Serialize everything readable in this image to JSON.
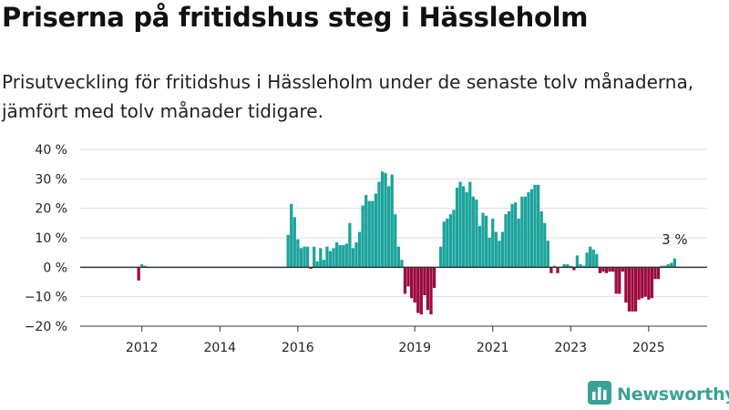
{
  "title": "Priserna på fritidshus steg i Hässleholm",
  "subtitle": "Prisutveckling för fritidshus i Hässleholm under de senaste tolv månaderna, jämfört med tolv månader tidigare.",
  "logo": {
    "text": "Newsworthy",
    "icon": "bar-chart-logo-icon"
  },
  "colors": {
    "positive": "#1ba39c",
    "negative": "#9b0b3e",
    "axis": "#333333",
    "grid": "#dddddd"
  },
  "chart_data": {
    "type": "bar",
    "title": "",
    "xlabel": "",
    "ylabel": "",
    "ylim": [
      -20,
      40
    ],
    "y_ticks": [
      {
        "value": 40,
        "label": "40 %"
      },
      {
        "value": 30,
        "label": "30 %"
      },
      {
        "value": 20,
        "label": "20 %"
      },
      {
        "value": 10,
        "label": "10 %"
      },
      {
        "value": 0,
        "label": "0 %"
      },
      {
        "value": -10,
        "label": "−10 %"
      },
      {
        "value": -20,
        "label": "−20 %"
      }
    ],
    "x_ticks": [
      {
        "date": "2012-01",
        "label": "2012"
      },
      {
        "date": "2014-01",
        "label": "2014"
      },
      {
        "date": "2016-01",
        "label": "2016"
      },
      {
        "date": "2019-01",
        "label": "2019"
      },
      {
        "date": "2021-01",
        "label": "2021"
      },
      {
        "date": "2023-01",
        "label": "2023"
      },
      {
        "date": "2025-01",
        "label": "2025"
      }
    ],
    "x_range": [
      "2010-06",
      "2026-07"
    ],
    "grid": true,
    "annotation": {
      "date": "2025-09",
      "label": "3 %"
    },
    "series": [
      {
        "values": [
          [
            "2011-12",
            -4.5
          ],
          [
            "2012-01",
            1
          ],
          [
            "2012-02",
            0.5
          ],
          [
            "2015-10",
            11
          ],
          [
            "2015-11",
            21.5
          ],
          [
            "2015-12",
            17
          ],
          [
            "2016-01",
            9.5
          ],
          [
            "2016-02",
            6.5
          ],
          [
            "2016-03",
            7
          ],
          [
            "2016-04",
            7
          ],
          [
            "2016-05",
            -0.5
          ],
          [
            "2016-06",
            7
          ],
          [
            "2016-07",
            2
          ],
          [
            "2016-08",
            6.5
          ],
          [
            "2016-09",
            2.5
          ],
          [
            "2016-10",
            7
          ],
          [
            "2016-11",
            5.5
          ],
          [
            "2016-12",
            6.5
          ],
          [
            "2017-01",
            8.5
          ],
          [
            "2017-02",
            7.5
          ],
          [
            "2017-03",
            7.5
          ],
          [
            "2017-04",
            8
          ],
          [
            "2017-05",
            15
          ],
          [
            "2017-06",
            6.5
          ],
          [
            "2017-07",
            8.5
          ],
          [
            "2017-08",
            12
          ],
          [
            "2017-09",
            21
          ],
          [
            "2017-10",
            24.5
          ],
          [
            "2017-11",
            22.5
          ],
          [
            "2017-12",
            22.5
          ],
          [
            "2018-01",
            25
          ],
          [
            "2018-02",
            29
          ],
          [
            "2018-03",
            32.5
          ],
          [
            "2018-04",
            32
          ],
          [
            "2018-05",
            27.5
          ],
          [
            "2018-06",
            31.5
          ],
          [
            "2018-07",
            18
          ],
          [
            "2018-08",
            7
          ],
          [
            "2018-09",
            2.5
          ],
          [
            "2018-10",
            -9
          ],
          [
            "2018-11",
            -6.5
          ],
          [
            "2018-12",
            -10.5
          ],
          [
            "2019-01",
            -12
          ],
          [
            "2019-02",
            -15.5
          ],
          [
            "2019-03",
            -16
          ],
          [
            "2019-04",
            -9.5
          ],
          [
            "2019-05",
            -14.5
          ],
          [
            "2019-06",
            -16
          ],
          [
            "2019-07",
            -7
          ],
          [
            "2019-08",
            0
          ],
          [
            "2019-09",
            7
          ],
          [
            "2019-10",
            15.5
          ],
          [
            "2019-11",
            16.5
          ],
          [
            "2019-12",
            18
          ],
          [
            "2020-01",
            19.5
          ],
          [
            "2020-02",
            27
          ],
          [
            "2020-03",
            29
          ],
          [
            "2020-04",
            27.5
          ],
          [
            "2020-05",
            25.5
          ],
          [
            "2020-06",
            29
          ],
          [
            "2020-07",
            24
          ],
          [
            "2020-08",
            23
          ],
          [
            "2020-09",
            14
          ],
          [
            "2020-10",
            18.5
          ],
          [
            "2020-11",
            17.5
          ],
          [
            "2020-12",
            10
          ],
          [
            "2021-01",
            16.5
          ],
          [
            "2021-02",
            12
          ],
          [
            "2021-03",
            9
          ],
          [
            "2021-04",
            12
          ],
          [
            "2021-05",
            18
          ],
          [
            "2021-06",
            19
          ],
          [
            "2021-07",
            21.5
          ],
          [
            "2021-08",
            22
          ],
          [
            "2021-09",
            16.5
          ],
          [
            "2021-10",
            24
          ],
          [
            "2021-11",
            24
          ],
          [
            "2021-12",
            25.5
          ],
          [
            "2022-01",
            26.5
          ],
          [
            "2022-02",
            28
          ],
          [
            "2022-03",
            28
          ],
          [
            "2022-04",
            19
          ],
          [
            "2022-05",
            15
          ],
          [
            "2022-06",
            9
          ],
          [
            "2022-07",
            -2
          ],
          [
            "2022-08",
            0.5
          ],
          [
            "2022-09",
            -2
          ],
          [
            "2022-10",
            0
          ],
          [
            "2022-11",
            1
          ],
          [
            "2022-12",
            1
          ],
          [
            "2023-01",
            0.5
          ],
          [
            "2023-02",
            -1
          ],
          [
            "2023-03",
            4
          ],
          [
            "2023-04",
            1
          ],
          [
            "2023-05",
            0.5
          ],
          [
            "2023-06",
            5
          ],
          [
            "2023-07",
            7
          ],
          [
            "2023-08",
            6
          ],
          [
            "2023-09",
            4.5
          ],
          [
            "2023-10",
            -2
          ],
          [
            "2023-11",
            -1.5
          ],
          [
            "2023-12",
            -2
          ],
          [
            "2024-01",
            -1.5
          ],
          [
            "2024-02",
            -1.5
          ],
          [
            "2024-03",
            -9
          ],
          [
            "2024-04",
            -9
          ],
          [
            "2024-05",
            -1.5
          ],
          [
            "2024-06",
            -12
          ],
          [
            "2024-07",
            -15
          ],
          [
            "2024-08",
            -15
          ],
          [
            "2024-09",
            -15
          ],
          [
            "2024-10",
            -11
          ],
          [
            "2024-11",
            -10.5
          ],
          [
            "2024-12",
            -10
          ],
          [
            "2025-01",
            -11
          ],
          [
            "2025-02",
            -10.5
          ],
          [
            "2025-03",
            -4
          ],
          [
            "2025-04",
            -4
          ],
          [
            "2025-05",
            0.5
          ],
          [
            "2025-06",
            0.5
          ],
          [
            "2025-07",
            1
          ],
          [
            "2025-08",
            1.5
          ],
          [
            "2025-09",
            3
          ]
        ]
      }
    ]
  }
}
